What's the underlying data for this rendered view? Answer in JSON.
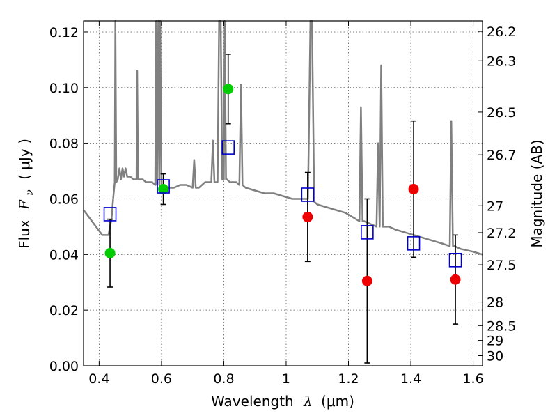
{
  "chart_data": {
    "type": "scatter",
    "xlabel": {
      "prefix": "Wavelength",
      "symbol": "λ",
      "unit": "(μm)"
    },
    "ylabel": {
      "prefix": "Flux",
      "symbol": "F",
      "subscript": "ν",
      "unit": "( μJy )"
    },
    "y2label": "Magnitude (AB)",
    "xlim": [
      0.35,
      1.63
    ],
    "ylim": [
      0.0,
      0.124
    ],
    "grid": true,
    "x_ticks": [
      {
        "value": 0.4,
        "label": "0.4"
      },
      {
        "value": 0.6,
        "label": "0.6"
      },
      {
        "value": 0.8,
        "label": "0.8"
      },
      {
        "value": 1.0,
        "label": "1"
      },
      {
        "value": 1.2,
        "label": "1.2"
      },
      {
        "value": 1.4,
        "label": "1.4"
      },
      {
        "value": 1.6,
        "label": "1.6"
      }
    ],
    "y_ticks": [
      {
        "value": 0.0,
        "label": "0.00"
      },
      {
        "value": 0.02,
        "label": "0.02"
      },
      {
        "value": 0.04,
        "label": "0.04"
      },
      {
        "value": 0.06,
        "label": "0.06"
      },
      {
        "value": 0.08,
        "label": "0.08"
      },
      {
        "value": 0.1,
        "label": "0.10"
      },
      {
        "value": 0.12,
        "label": "0.12"
      }
    ],
    "magnitude_ticks": [
      {
        "value": 26.2,
        "label": "26.2"
      },
      {
        "value": 26.3,
        "label": "26.3"
      },
      {
        "value": 26.5,
        "label": "26.5"
      },
      {
        "value": 26.7,
        "label": "26.7"
      },
      {
        "value": 27.0,
        "label": "27"
      },
      {
        "value": 27.2,
        "label": "27.2"
      },
      {
        "value": 27.5,
        "label": "27.5"
      },
      {
        "value": 28.0,
        "label": "28"
      },
      {
        "value": 28.5,
        "label": "28.5"
      },
      {
        "value": 29.0,
        "label": "29"
      },
      {
        "value": 30.0,
        "label": "30"
      }
    ],
    "series": [
      {
        "kind": "model-spectrum",
        "color": "#808080",
        "x": [
          0.35,
          0.37,
          0.39,
          0.41,
          0.43,
          0.44,
          0.445,
          0.45,
          0.452,
          0.455,
          0.46,
          0.465,
          0.47,
          0.475,
          0.48,
          0.485,
          0.49,
          0.5,
          0.51,
          0.52,
          0.522,
          0.525,
          0.53,
          0.54,
          0.55,
          0.56,
          0.57,
          0.58,
          0.583,
          0.586,
          0.59,
          0.593,
          0.596,
          0.6,
          0.603,
          0.607,
          0.61,
          0.62,
          0.64,
          0.66,
          0.68,
          0.7,
          0.705,
          0.71,
          0.72,
          0.74,
          0.76,
          0.765,
          0.77,
          0.78,
          0.785,
          0.79,
          0.795,
          0.8,
          0.803,
          0.807,
          0.81,
          0.82,
          0.84,
          0.85,
          0.855,
          0.86,
          0.87,
          0.9,
          0.93,
          0.96,
          0.99,
          1.02,
          1.05,
          1.07,
          1.078,
          1.083,
          1.09,
          1.1,
          1.13,
          1.16,
          1.19,
          1.22,
          1.235,
          1.24,
          1.245,
          1.25,
          1.27,
          1.29,
          1.295,
          1.3,
          1.305,
          1.31,
          1.33,
          1.35,
          1.38,
          1.41,
          1.44,
          1.47,
          1.5,
          1.525,
          1.53,
          1.535,
          1.54,
          1.56,
          1.6,
          1.63
        ],
        "y": [
          0.056,
          0.053,
          0.05,
          0.047,
          0.047,
          0.053,
          0.06,
          0.066,
          0.124,
          0.066,
          0.067,
          0.071,
          0.067,
          0.071,
          0.068,
          0.071,
          0.068,
          0.068,
          0.067,
          0.067,
          0.106,
          0.067,
          0.067,
          0.067,
          0.066,
          0.066,
          0.066,
          0.065,
          0.124,
          0.065,
          0.124,
          0.065,
          0.124,
          0.065,
          0.065,
          0.064,
          0.064,
          0.064,
          0.064,
          0.065,
          0.065,
          0.064,
          0.074,
          0.064,
          0.064,
          0.066,
          0.066,
          0.081,
          0.066,
          0.066,
          0.124,
          0.124,
          0.067,
          0.067,
          0.124,
          0.067,
          0.067,
          0.066,
          0.066,
          0.065,
          0.101,
          0.065,
          0.064,
          0.063,
          0.062,
          0.062,
          0.061,
          0.06,
          0.06,
          0.06,
          0.124,
          0.124,
          0.059,
          0.058,
          0.057,
          0.056,
          0.055,
          0.053,
          0.052,
          0.093,
          0.052,
          0.052,
          0.051,
          0.05,
          0.08,
          0.05,
          0.108,
          0.05,
          0.05,
          0.049,
          0.048,
          0.047,
          0.046,
          0.045,
          0.044,
          0.043,
          0.088,
          0.043,
          0.043,
          0.042,
          0.041,
          0.04
        ]
      },
      {
        "kind": "model-photometry",
        "marker": "open-square",
        "color": "#0000cc",
        "x": [
          0.435,
          0.606,
          0.814,
          1.069,
          1.26,
          1.409,
          1.543
        ],
        "y": [
          0.0545,
          0.0645,
          0.0785,
          0.0615,
          0.048,
          0.044,
          0.038
        ]
      },
      {
        "kind": "observed",
        "marker": "filled-circle",
        "color": "#00cc00",
        "x": [
          0.435,
          0.606,
          0.814
        ],
        "y": [
          0.0405,
          0.0635,
          0.0995
        ],
        "yerr": [
          0.0122,
          0.0055,
          0.0125
        ]
      },
      {
        "kind": "observed",
        "marker": "filled-circle",
        "color": "#ee0000",
        "x": [
          1.069,
          1.26,
          1.409,
          1.543
        ],
        "y": [
          0.0535,
          0.0305,
          0.0635,
          0.031
        ],
        "yerr": [
          0.016,
          0.0295,
          0.0245,
          0.016
        ]
      }
    ]
  }
}
